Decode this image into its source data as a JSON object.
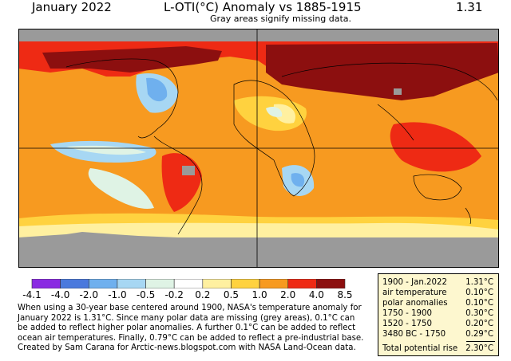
{
  "header": {
    "date": "January 2022",
    "title": "L-OTI(°C) Anomaly vs 1885-1915",
    "value": "1.31",
    "subtitle": "Gray areas signify missing data."
  },
  "colors": {
    "missing": "#9a9a9a",
    "ocean_base": "#f79a20",
    "table_bg": "#fdf7cf"
  },
  "legend": {
    "ticks": [
      "-4.1",
      "-4.0",
      "-2.0",
      "-1.0",
      "-0.5",
      "-0.2",
      "0.2",
      "0.5",
      "1.0",
      "2.0",
      "4.0",
      "8.5"
    ],
    "colors": [
      "#8a2be2",
      "#4a79dd",
      "#6fb0ee",
      "#a7d7f3",
      "#dff3e5",
      "#ffffff",
      "#fff0a0",
      "#ffd23f",
      "#f79a20",
      "#ee2a14",
      "#8c0f0f"
    ]
  },
  "note": {
    "lines": [
      "When using a 30-year base centered around 1900, NASA's temperature anomaly for",
      "January 2022 is 1.31°C. Since many polar data are missing (grey areas), 0.1°C can",
      "be added to reflect higher polar anomalies. A further 0.1°C can be added to reflect",
      "ocean air temperatures. Finally, 0.79°C can be added to reflect a pre-industrial base.",
      "Created by Sam Carana for Arctic-news.blogspot.com with NASA Land-Ocean data."
    ]
  },
  "table": {
    "rows": [
      {
        "label": "1900 - Jan.2022",
        "value": "1.31°C"
      },
      {
        "label": "air temperature",
        "value": "0.10°C"
      },
      {
        "label": "polar anomalies",
        "value": "0.10°C"
      },
      {
        "label": "1750 - 1900",
        "value": "0.30°C"
      },
      {
        "label": "1520 - 1750",
        "value": "0.20°C"
      },
      {
        "label": "3480 BC - 1750",
        "value": "0.29°C"
      },
      {
        "label": "Total potential rise",
        "value": "2.30°C"
      }
    ]
  }
}
